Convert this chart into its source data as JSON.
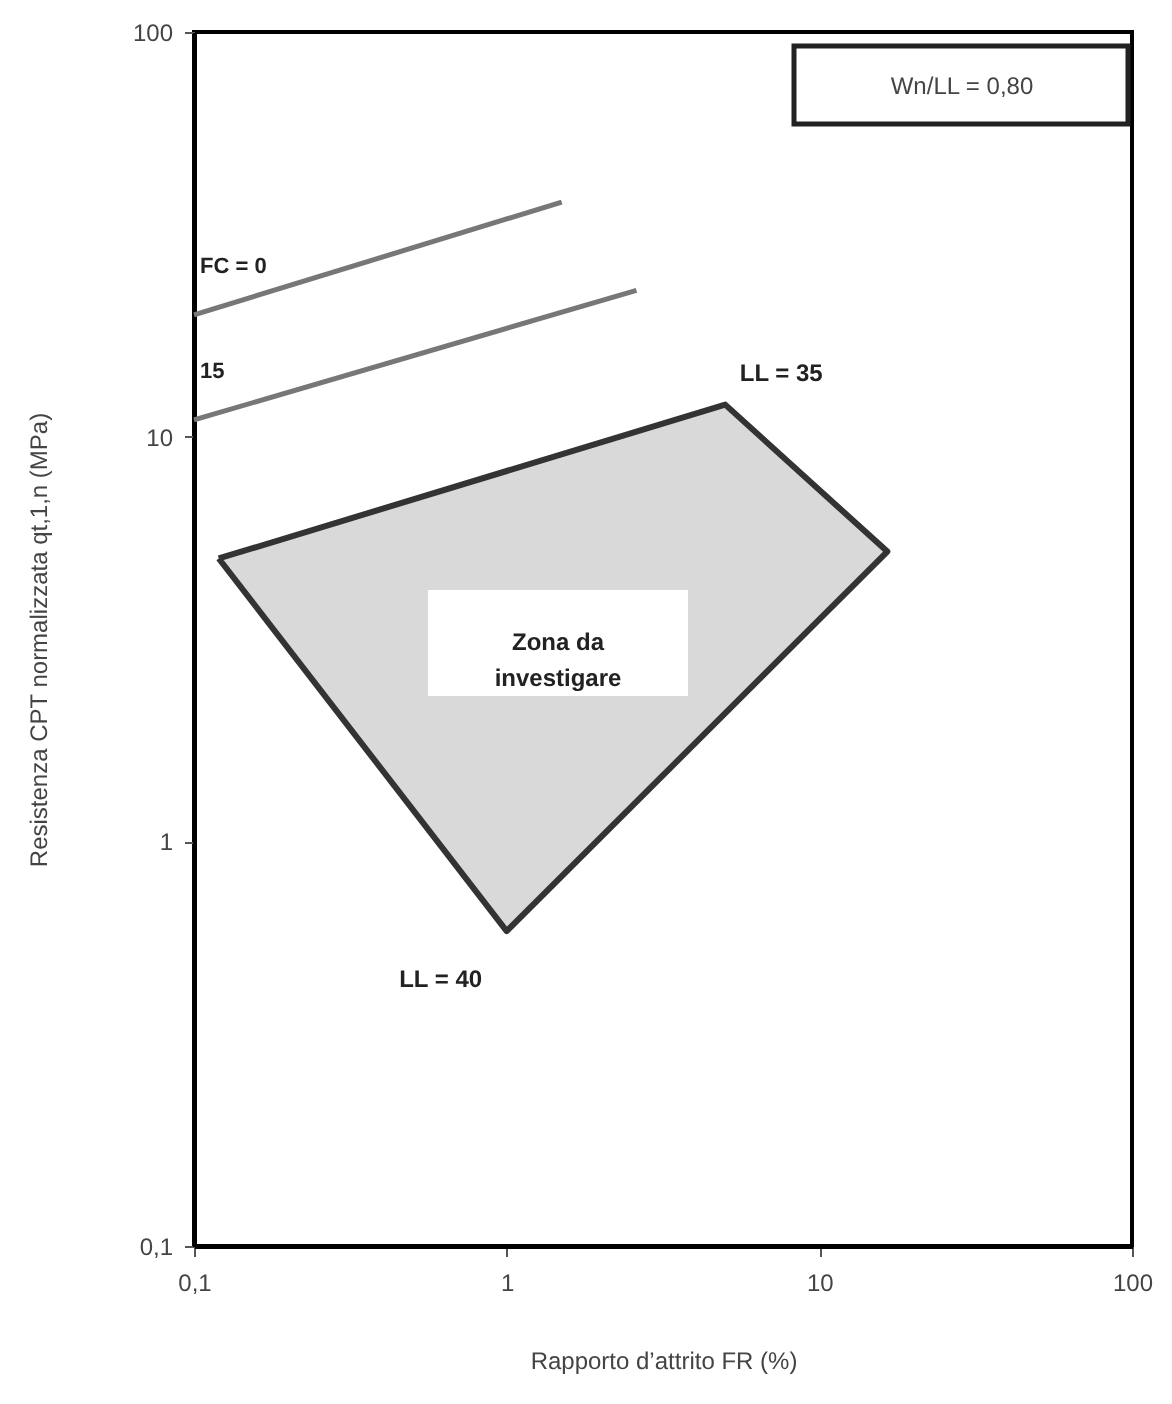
{
  "chart_data": {
    "type": "line",
    "xlabel": "Rapporto d’attrito FR (%)",
    "ylabel": "Resistenza CPT normalizzata qt,1,n (MPa)",
    "log": "xy",
    "xlim": [
      0.1,
      100
    ],
    "ylim": [
      0.1,
      100
    ],
    "xticks": [
      {
        "value": 0.1,
        "label": "0,1"
      },
      1,
      10,
      100
    ],
    "yticks": [
      {
        "value": 0.1,
        "label": "0,1"
      },
      1,
      10,
      100
    ],
    "grid": false,
    "series": [
      {
        "name": "FC = 0",
        "color": "#777777",
        "x": [
          0.1,
          1.5
        ],
        "values": [
          20,
          38
        ]
      },
      {
        "name": "15",
        "color": "#777777",
        "x": [
          0.1,
          2.6
        ],
        "values": [
          11,
          23
        ]
      },
      {
        "type": "area",
        "color": "#d9d9d9",
        "x": [
          0.12,
          5,
          16.5,
          1,
          0.12
        ],
        "values": [
          5,
          12,
          5.2,
          0.6,
          5
        ]
      }
    ],
    "annotations": [
      "Wn/LL = 0,80",
      {
        "text": "LL = 35",
        "x": 5,
        "y": 12
      },
      {
        "text": "LL = 40",
        "x": 1,
        "y": 0.6
      },
      "Zona da investigare"
    ]
  }
}
